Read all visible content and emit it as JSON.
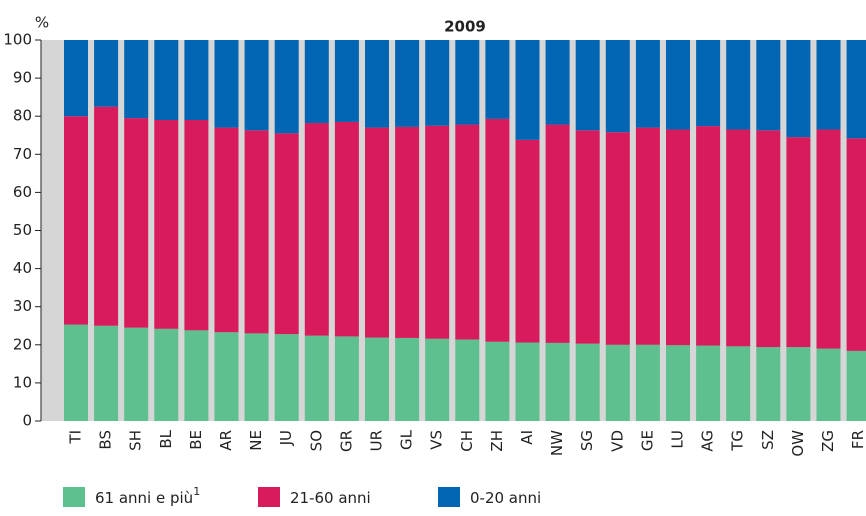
{
  "chart_data": {
    "type": "stacked_bar",
    "title": "2009",
    "y_label": "%",
    "categories": [
      "TI",
      "BS",
      "SH",
      "BL",
      "BE",
      "AR",
      "NE",
      "JU",
      "SO",
      "GR",
      "UR",
      "GL",
      "VS",
      "CH",
      "ZH",
      "AI",
      "NW",
      "SG",
      "VD",
      "GE",
      "LU",
      "AG",
      "TG",
      "SZ",
      "OW",
      "ZG",
      "FR"
    ],
    "series": [
      {
        "name": "61 anni e più",
        "footnote": "1",
        "color": "#5fc08f",
        "values": [
          25.3,
          25.0,
          24.5,
          24.2,
          23.8,
          23.3,
          23.0,
          22.8,
          22.4,
          22.2,
          21.9,
          21.8,
          21.6,
          21.4,
          20.8,
          20.6,
          20.5,
          20.3,
          20.0,
          20.0,
          19.9,
          19.8,
          19.6,
          19.4,
          19.4,
          19.0,
          18.4
        ]
      },
      {
        "name": "21-60 anni",
        "color": "#d81b5c",
        "values": [
          54.7,
          57.5,
          55.0,
          54.8,
          55.2,
          53.7,
          53.3,
          52.7,
          55.8,
          56.3,
          55.1,
          55.4,
          55.9,
          56.4,
          58.5,
          53.2,
          57.3,
          56.0,
          55.8,
          57.0,
          56.6,
          57.6,
          56.9,
          56.9,
          55.1,
          57.5,
          55.8
        ]
      },
      {
        "name": "0-20 anni",
        "color": "#0066b3",
        "values": [
          20.0,
          17.5,
          20.5,
          21.0,
          21.0,
          23.0,
          23.7,
          24.5,
          21.8,
          21.5,
          23.0,
          22.8,
          22.5,
          22.2,
          20.7,
          26.2,
          22.2,
          23.7,
          24.2,
          23.0,
          23.5,
          22.6,
          23.5,
          23.7,
          25.5,
          23.5,
          25.8
        ]
      }
    ],
    "ylim": [
      0,
      100
    ],
    "yticks": [
      0,
      10,
      20,
      30,
      40,
      50,
      60,
      70,
      80,
      90,
      100
    ]
  }
}
